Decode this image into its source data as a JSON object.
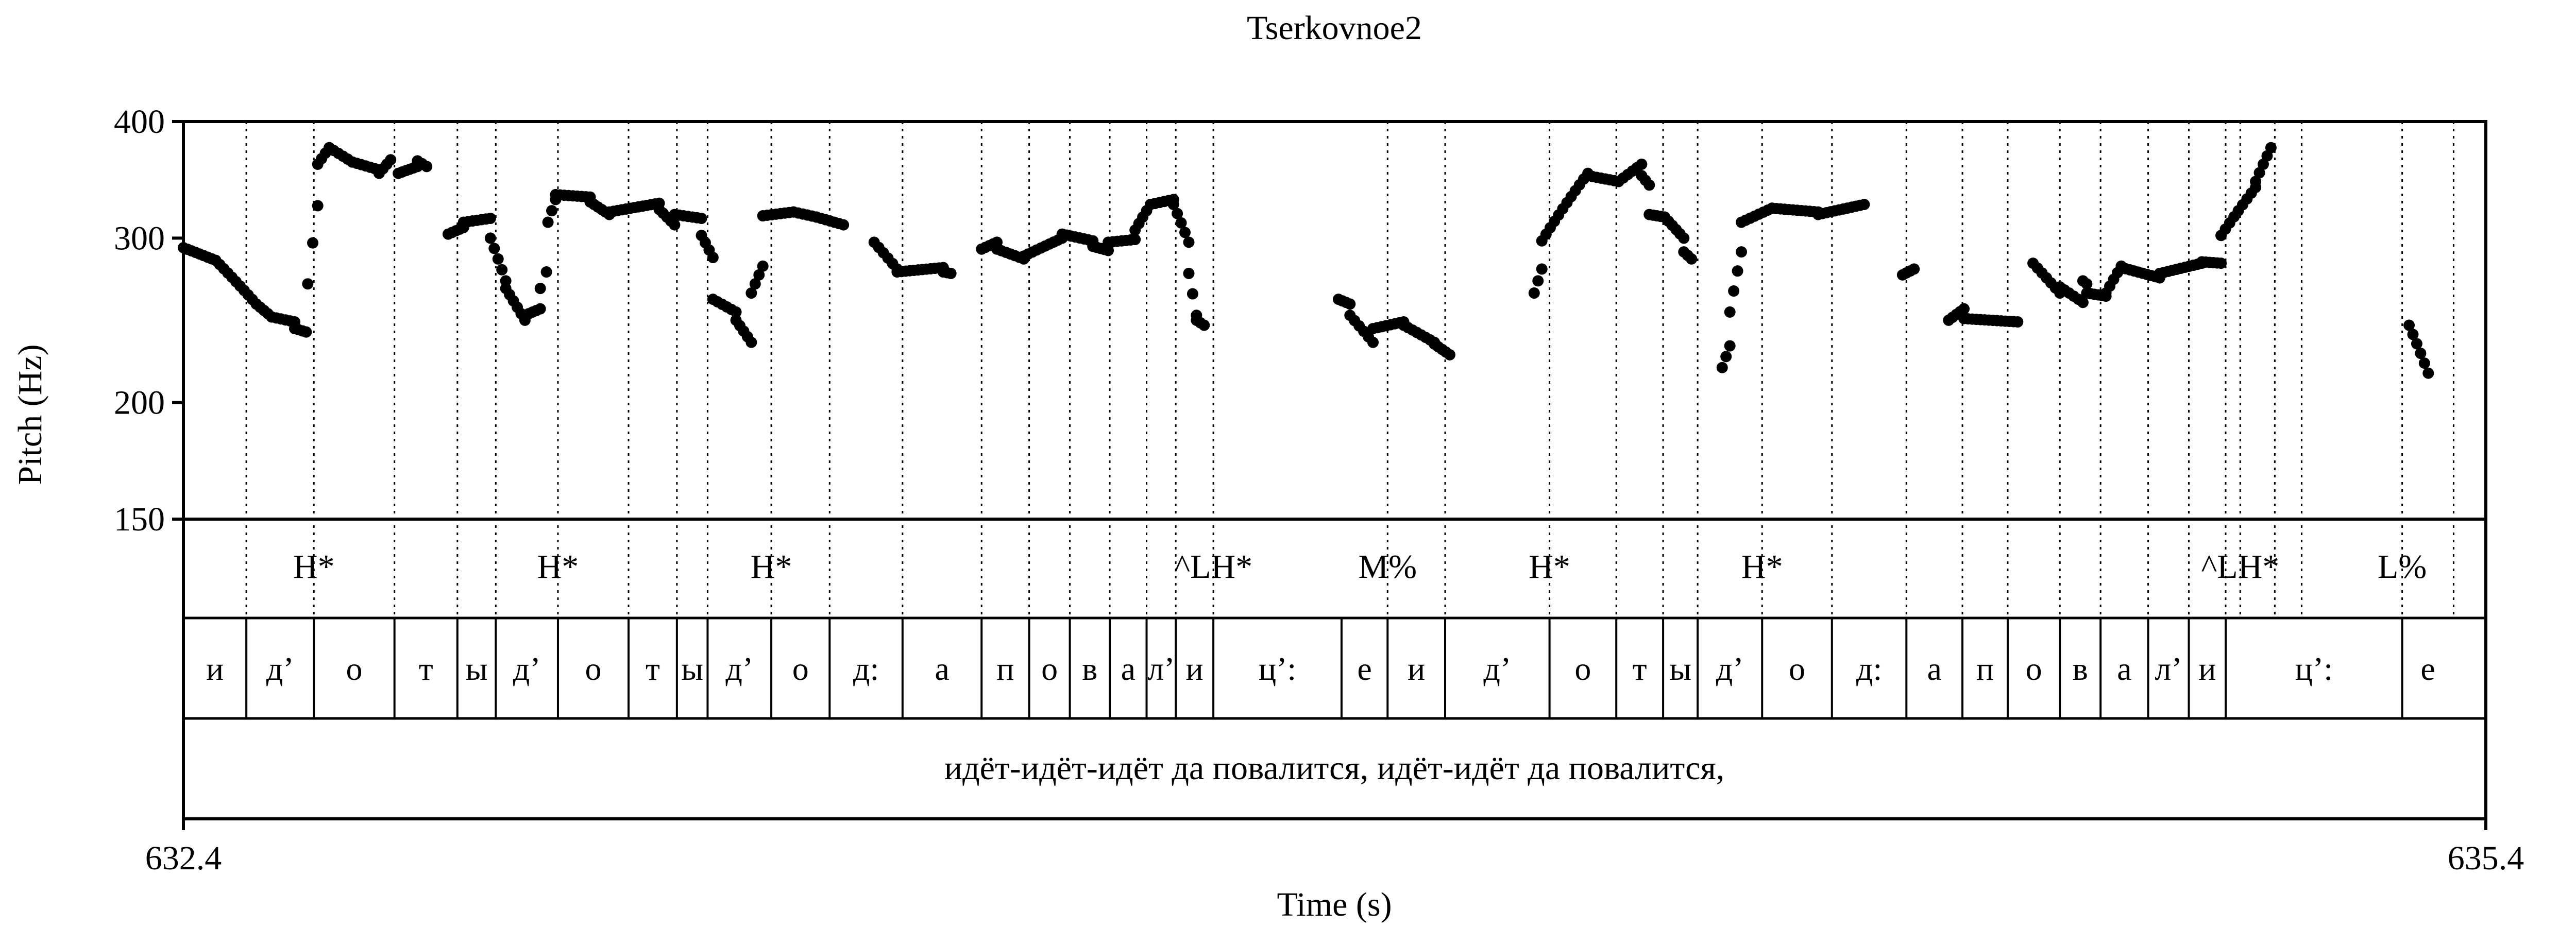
{
  "chart_data": {
    "type": "scatter",
    "title": "Tserkovnoe2",
    "xlabel": "Time (s)",
    "ylabel": "Pitch (Hz)",
    "xlim": [
      632.4,
      635.4
    ],
    "ylim": [
      150,
      400
    ],
    "y_scale": "log",
    "x_tick_labels": [
      "632.4",
      "635.4"
    ],
    "y_ticks": [
      150,
      200,
      300,
      400
    ],
    "grid": false,
    "boundaries": [
      632.482,
      632.57,
      632.675,
      632.757,
      632.807,
      632.888,
      632.98,
      633.043,
      633.083,
      633.166,
      633.242,
      633.337,
      633.44,
      633.502,
      633.555,
      633.607,
      633.655,
      633.693,
      633.742,
      633.969,
      634.044,
      634.18,
      634.267,
      634.328,
      634.373,
      634.457,
      634.548,
      634.645,
      634.718,
      634.777,
      634.845,
      634.898,
      634.96,
      635.013,
      635.061,
      635.08,
      635.125,
      635.16,
      635.291,
      635.358
    ],
    "tones": [
      {
        "t": 632.57,
        "label": "H*"
      },
      {
        "t": 632.888,
        "label": "H*"
      },
      {
        "t": 633.166,
        "label": "H*"
      },
      {
        "t": 633.742,
        "label": "^LH*"
      },
      {
        "t": 633.969,
        "label": "M%"
      },
      {
        "t": 634.18,
        "label": "H*"
      },
      {
        "t": 634.457,
        "label": "H*"
      },
      {
        "t": 635.08,
        "label": "^LH*"
      },
      {
        "t": 635.291,
        "label": "L%"
      }
    ],
    "segments": [
      {
        "t0": 632.4,
        "t1": 632.482,
        "label": "и"
      },
      {
        "t0": 632.482,
        "t1": 632.57,
        "label": "д’"
      },
      {
        "t0": 632.57,
        "t1": 632.675,
        "label": "о"
      },
      {
        "t0": 632.675,
        "t1": 632.757,
        "label": "т"
      },
      {
        "t0": 632.757,
        "t1": 632.807,
        "label": "ы"
      },
      {
        "t0": 632.807,
        "t1": 632.888,
        "label": "д’"
      },
      {
        "t0": 632.888,
        "t1": 632.98,
        "label": "о"
      },
      {
        "t0": 632.98,
        "t1": 633.043,
        "label": "т"
      },
      {
        "t0": 633.043,
        "t1": 633.083,
        "label": "ы"
      },
      {
        "t0": 633.083,
        "t1": 633.166,
        "label": "д’"
      },
      {
        "t0": 633.166,
        "t1": 633.242,
        "label": "о"
      },
      {
        "t0": 633.242,
        "t1": 633.337,
        "label": "д:"
      },
      {
        "t0": 633.337,
        "t1": 633.44,
        "label": "а"
      },
      {
        "t0": 633.44,
        "t1": 633.502,
        "label": "п"
      },
      {
        "t0": 633.502,
        "t1": 633.555,
        "label": "о"
      },
      {
        "t0": 633.555,
        "t1": 633.607,
        "label": "в"
      },
      {
        "t0": 633.607,
        "t1": 633.655,
        "label": "а"
      },
      {
        "t0": 633.655,
        "t1": 633.693,
        "label": "л’"
      },
      {
        "t0": 633.693,
        "t1": 633.742,
        "label": "и"
      },
      {
        "t0": 633.742,
        "t1": 633.909,
        "label": "ц’:"
      },
      {
        "t0": 633.909,
        "t1": 633.969,
        "label": "е"
      },
      {
        "t0": 633.969,
        "t1": 634.044,
        "label": "и"
      },
      {
        "t0": 634.044,
        "t1": 634.18,
        "label": "д’"
      },
      {
        "t0": 634.18,
        "t1": 634.267,
        "label": "о"
      },
      {
        "t0": 634.267,
        "t1": 634.328,
        "label": "т"
      },
      {
        "t0": 634.328,
        "t1": 634.373,
        "label": "ы"
      },
      {
        "t0": 634.373,
        "t1": 634.457,
        "label": "д’"
      },
      {
        "t0": 634.457,
        "t1": 634.548,
        "label": "о"
      },
      {
        "t0": 634.548,
        "t1": 634.645,
        "label": "д:"
      },
      {
        "t0": 634.645,
        "t1": 634.718,
        "label": "а"
      },
      {
        "t0": 634.718,
        "t1": 634.777,
        "label": "п"
      },
      {
        "t0": 634.777,
        "t1": 634.845,
        "label": "о"
      },
      {
        "t0": 634.845,
        "t1": 634.898,
        "label": "в"
      },
      {
        "t0": 634.898,
        "t1": 634.96,
        "label": "а"
      },
      {
        "t0": 634.96,
        "t1": 635.013,
        "label": "л’"
      },
      {
        "t0": 635.013,
        "t1": 635.061,
        "label": "и"
      },
      {
        "t0": 635.061,
        "t1": 635.291,
        "label": "ц’:"
      },
      {
        "t0": 635.291,
        "t1": 635.358,
        "label": "е"
      }
    ],
    "utterance": "идёт-идёт-идёт да повалится, идёт-идёт да повалится,",
    "pitch_runs": [
      {
        "t0": 632.4,
        "t1": 632.442,
        "f0": 293,
        "f1": 284
      },
      {
        "t0": 632.442,
        "t1": 632.495,
        "f0": 284,
        "f1": 255
      },
      {
        "t0": 632.495,
        "t1": 632.515,
        "f0": 255,
        "f1": 247
      },
      {
        "t0": 632.515,
        "t1": 632.545,
        "f0": 247,
        "f1": 244
      },
      {
        "t0": 632.545,
        "t1": 632.56,
        "f0": 240,
        "f1": 238
      },
      {
        "t0": 632.562,
        "t1": 632.575,
        "f0": 268,
        "f1": 325
      },
      {
        "t0": 632.575,
        "t1": 632.59,
        "f0": 360,
        "f1": 375
      },
      {
        "t0": 632.59,
        "t1": 632.62,
        "f0": 375,
        "f1": 362
      },
      {
        "t0": 632.62,
        "t1": 632.655,
        "f0": 362,
        "f1": 355
      },
      {
        "t0": 632.655,
        "t1": 632.67,
        "f0": 352,
        "f1": 364
      },
      {
        "t0": 632.68,
        "t1": 632.705,
        "f0": 352,
        "f1": 358
      },
      {
        "t0": 632.705,
        "t1": 632.717,
        "f0": 363,
        "f1": 358
      },
      {
        "t0": 632.745,
        "t1": 632.765,
        "f0": 303,
        "f1": 308
      },
      {
        "t0": 632.765,
        "t1": 632.8,
        "f0": 312,
        "f1": 315
      },
      {
        "t0": 632.8,
        "t1": 632.82,
        "f0": 300,
        "f1": 270
      },
      {
        "t0": 632.82,
        "t1": 632.845,
        "f0": 265,
        "f1": 245
      },
      {
        "t0": 632.845,
        "t1": 632.865,
        "f0": 248,
        "f1": 252
      },
      {
        "t0": 632.865,
        "t1": 632.873,
        "f0": 265,
        "f1": 276
      },
      {
        "t0": 632.875,
        "t1": 632.885,
        "f0": 312,
        "f1": 330
      },
      {
        "t0": 632.885,
        "t1": 632.93,
        "f0": 334,
        "f1": 332
      },
      {
        "t0": 632.93,
        "t1": 632.955,
        "f0": 328,
        "f1": 318
      },
      {
        "t0": 632.955,
        "t1": 633.02,
        "f0": 320,
        "f1": 327
      },
      {
        "t0": 633.02,
        "t1": 633.04,
        "f0": 322,
        "f1": 310
      },
      {
        "t0": 633.04,
        "t1": 633.075,
        "f0": 318,
        "f1": 315
      },
      {
        "t0": 633.075,
        "t1": 633.09,
        "f0": 302,
        "f1": 286
      },
      {
        "t0": 633.09,
        "t1": 633.12,
        "f0": 258,
        "f1": 250
      },
      {
        "t0": 633.12,
        "t1": 633.14,
        "f0": 245,
        "f1": 232
      },
      {
        "t0": 633.14,
        "t1": 633.155,
        "f0": 262,
        "f1": 280
      },
      {
        "t0": 633.155,
        "t1": 633.195,
        "f0": 317,
        "f1": 320
      },
      {
        "t0": 633.195,
        "t1": 633.225,
        "f0": 320,
        "f1": 316
      },
      {
        "t0": 633.225,
        "t1": 633.26,
        "f0": 316,
        "f1": 310
      },
      {
        "t0": 633.3,
        "t1": 633.33,
        "f0": 297,
        "f1": 278
      },
      {
        "t0": 633.33,
        "t1": 633.39,
        "f0": 276,
        "f1": 279
      },
      {
        "t0": 633.39,
        "t1": 633.4,
        "f0": 276,
        "f1": 275
      },
      {
        "t0": 633.44,
        "t1": 633.46,
        "f0": 292,
        "f1": 297
      },
      {
        "t0": 633.46,
        "t1": 633.495,
        "f0": 292,
        "f1": 285
      },
      {
        "t0": 633.495,
        "t1": 633.545,
        "f0": 287,
        "f1": 300
      },
      {
        "t0": 633.545,
        "t1": 633.585,
        "f0": 303,
        "f1": 298
      },
      {
        "t0": 633.585,
        "t1": 633.605,
        "f0": 294,
        "f1": 291
      },
      {
        "t0": 633.605,
        "t1": 633.64,
        "f0": 297,
        "f1": 299
      },
      {
        "t0": 633.64,
        "t1": 633.66,
        "f0": 306,
        "f1": 326
      },
      {
        "t0": 633.66,
        "t1": 633.69,
        "f0": 326,
        "f1": 330
      },
      {
        "t0": 633.69,
        "t1": 633.71,
        "f0": 326,
        "f1": 297
      },
      {
        "t0": 633.71,
        "t1": 633.72,
        "f0": 275,
        "f1": 248
      },
      {
        "t0": 633.72,
        "t1": 633.73,
        "f0": 245,
        "f1": 242
      },
      {
        "t0": 633.905,
        "t1": 633.92,
        "f0": 258,
        "f1": 255
      },
      {
        "t0": 633.92,
        "t1": 633.95,
        "f0": 248,
        "f1": 232
      },
      {
        "t0": 633.95,
        "t1": 633.99,
        "f0": 240,
        "f1": 244
      },
      {
        "t0": 633.99,
        "t1": 634.03,
        "f0": 242,
        "f1": 232
      },
      {
        "t0": 634.03,
        "t1": 634.05,
        "f0": 231,
        "f1": 225
      },
      {
        "t0": 634.16,
        "t1": 634.17,
        "f0": 262,
        "f1": 278
      },
      {
        "t0": 634.17,
        "t1": 634.23,
        "f0": 298,
        "f1": 352
      },
      {
        "t0": 634.23,
        "t1": 634.27,
        "f0": 350,
        "f1": 345
      },
      {
        "t0": 634.27,
        "t1": 634.3,
        "f0": 345,
        "f1": 360
      },
      {
        "t0": 634.3,
        "t1": 634.31,
        "f0": 350,
        "f1": 342
      },
      {
        "t0": 634.31,
        "t1": 634.33,
        "f0": 318,
        "f1": 316
      },
      {
        "t0": 634.33,
        "t1": 634.355,
        "f0": 316,
        "f1": 300
      },
      {
        "t0": 634.355,
        "t1": 634.365,
        "f0": 290,
        "f1": 285
      },
      {
        "t0": 634.405,
        "t1": 634.415,
        "f0": 218,
        "f1": 230
      },
      {
        "t0": 634.415,
        "t1": 634.43,
        "f0": 250,
        "f1": 290
      },
      {
        "t0": 634.43,
        "t1": 634.47,
        "f0": 312,
        "f1": 323
      },
      {
        "t0": 634.47,
        "t1": 634.53,
        "f0": 323,
        "f1": 320
      },
      {
        "t0": 634.53,
        "t1": 634.59,
        "f0": 318,
        "f1": 326
      },
      {
        "t0": 634.64,
        "t1": 634.655,
        "f0": 274,
        "f1": 278
      },
      {
        "t0": 634.7,
        "t1": 634.72,
        "f0": 245,
        "f1": 252
      },
      {
        "t0": 634.72,
        "t1": 634.79,
        "f0": 246,
        "f1": 244
      },
      {
        "t0": 634.81,
        "t1": 634.845,
        "f0": 282,
        "f1": 262
      },
      {
        "t0": 634.845,
        "t1": 634.875,
        "f0": 266,
        "f1": 256
      },
      {
        "t0": 634.875,
        "t1": 634.88,
        "f0": 270,
        "f1": 268
      },
      {
        "t0": 634.88,
        "t1": 634.905,
        "f0": 262,
        "f1": 260
      },
      {
        "t0": 634.905,
        "t1": 634.925,
        "f0": 262,
        "f1": 280
      },
      {
        "t0": 634.925,
        "t1": 634.975,
        "f0": 279,
        "f1": 272
      },
      {
        "t0": 634.975,
        "t1": 635.03,
        "f0": 275,
        "f1": 282
      },
      {
        "t0": 635.03,
        "t1": 635.055,
        "f0": 283,
        "f1": 282
      },
      {
        "t0": 635.055,
        "t1": 635.1,
        "f0": 302,
        "f1": 340
      },
      {
        "t0": 635.1,
        "t1": 635.12,
        "f0": 345,
        "f1": 375
      },
      {
        "t0": 635.3,
        "t1": 635.325,
        "f0": 242,
        "f1": 215
      }
    ]
  }
}
